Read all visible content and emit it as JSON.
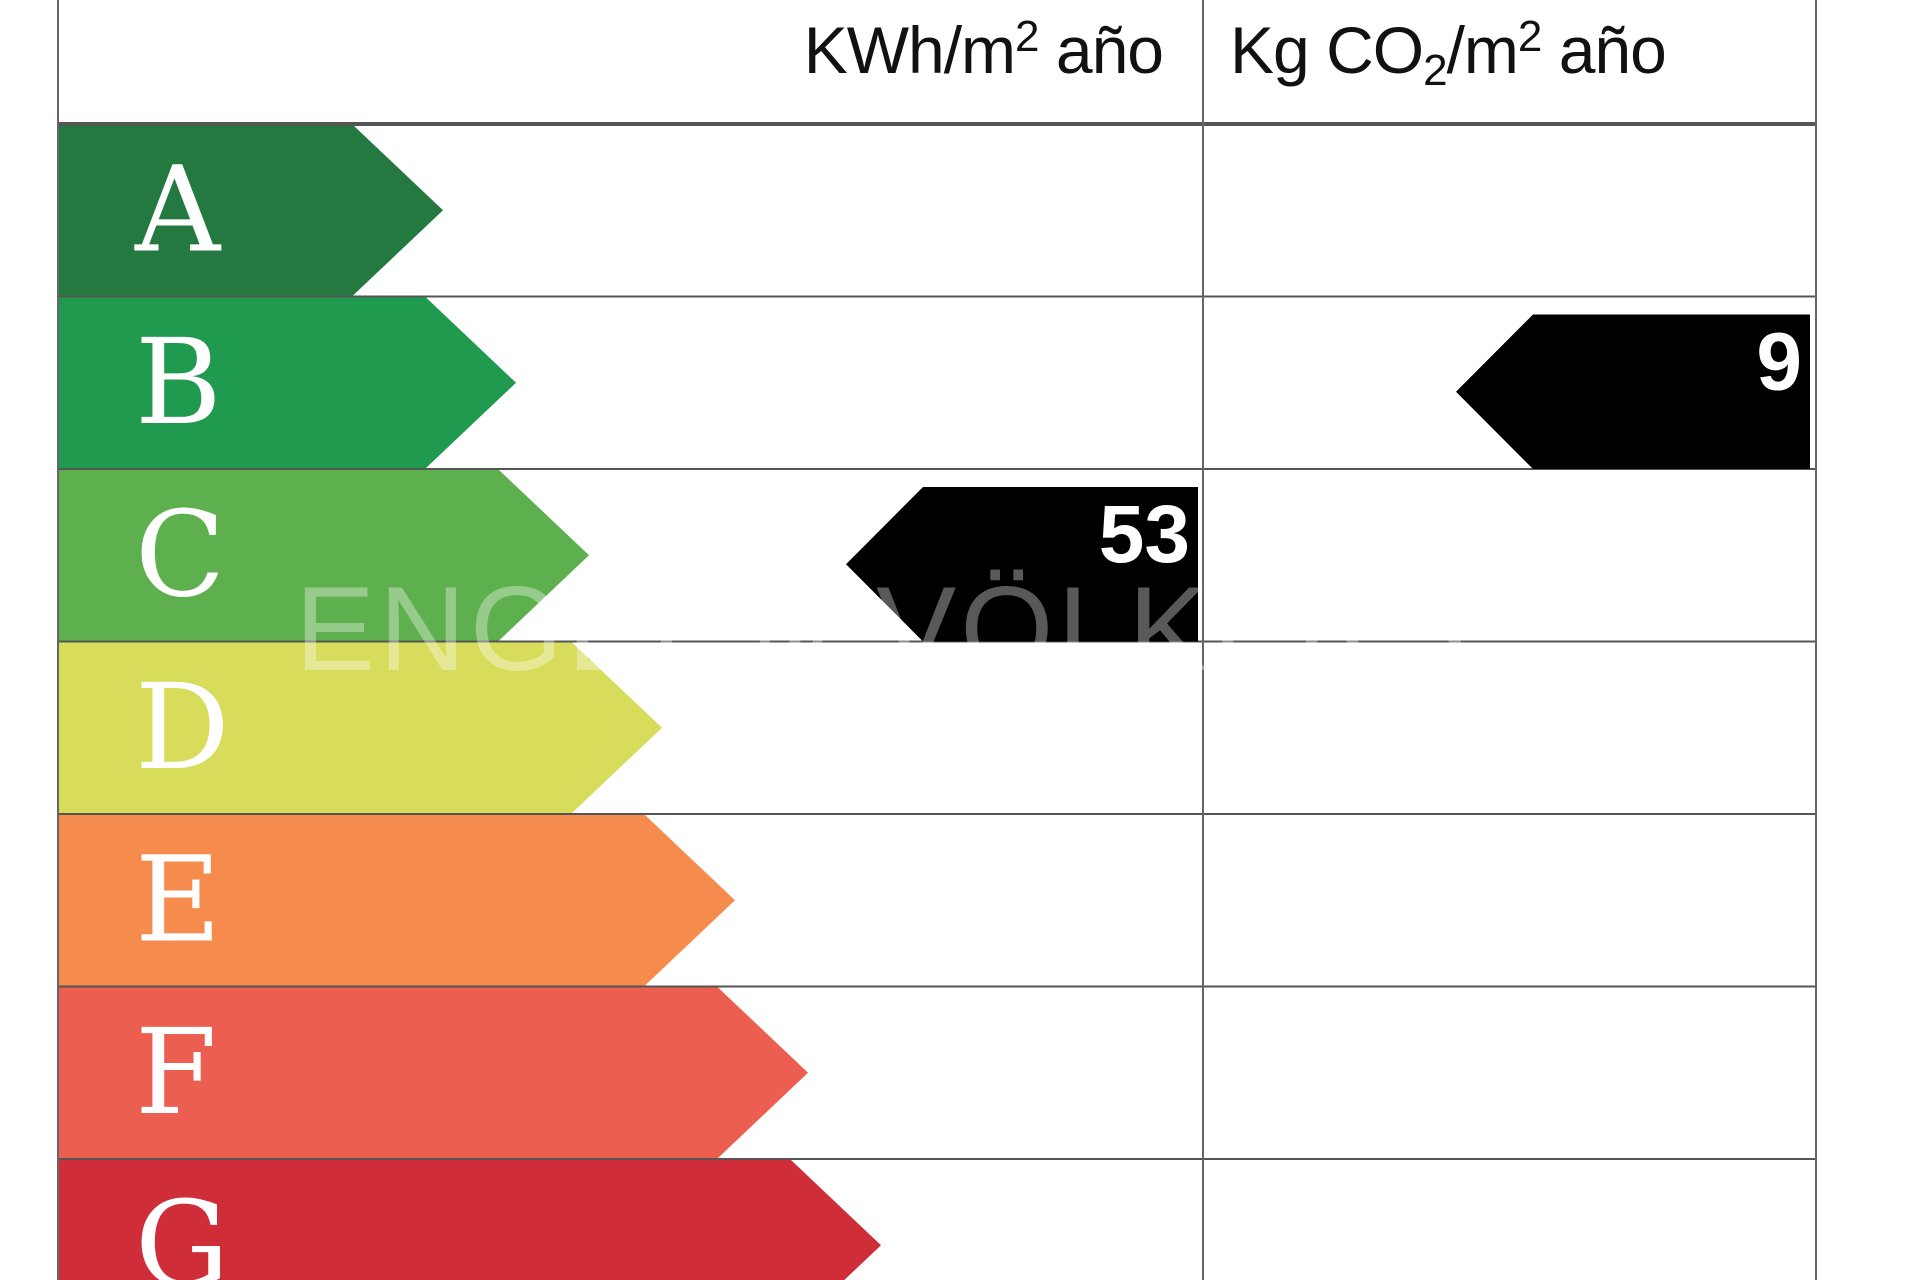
{
  "chart_data": {
    "type": "energy-rating-scale",
    "columns": [
      {
        "unit_main": "KWh/m",
        "unit_sup": "2",
        "unit_tail": " año",
        "value": "53",
        "rating": "C"
      },
      {
        "unit_main": "Kg CO",
        "unit_sub": "2",
        "unit_mid": "/m",
        "unit_sup": "2",
        "unit_tail": " año",
        "value": "9",
        "rating": "B"
      }
    ],
    "classes": [
      {
        "letter": "A",
        "color": "#23793f"
      },
      {
        "letter": "B",
        "color": "#1f9a4e"
      },
      {
        "letter": "C",
        "color": "#5eb04f"
      },
      {
        "letter": "D",
        "color": "#d7dc5b"
      },
      {
        "letter": "E",
        "color": "#f58b4d"
      },
      {
        "letter": "F",
        "color": "#ec5e50"
      },
      {
        "letter": "G",
        "color": "#cf2e38"
      }
    ],
    "indicator_color": "#000000"
  },
  "watermark": "ENGEL & VÖLKERS"
}
